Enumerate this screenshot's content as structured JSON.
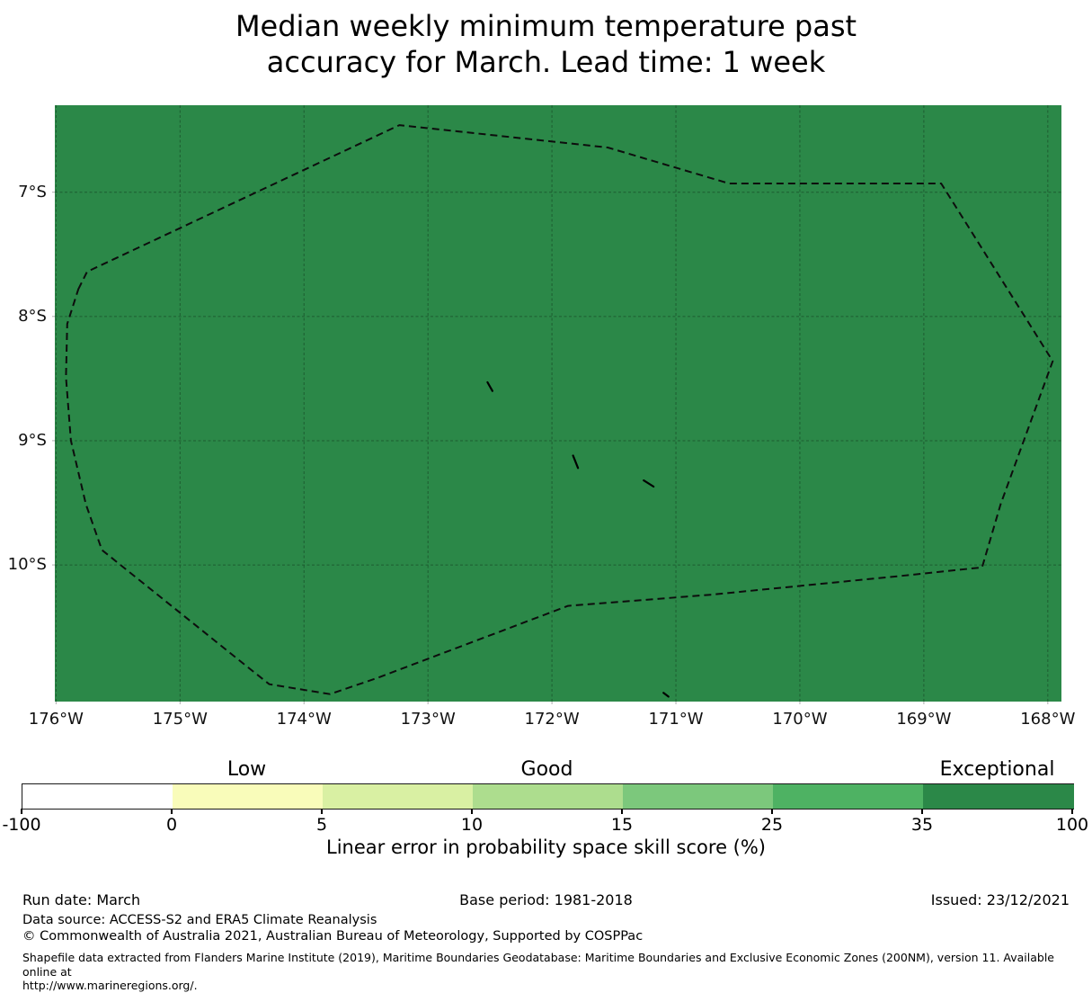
{
  "title": "Median weekly minimum temperature past\naccuracy for March. Lead time: 1 week",
  "footer": {
    "run_date": "Run date: March",
    "base_period": "Base period: 1981-2018",
    "issued": "Issued: 23/12/2021",
    "data_source": "Data source: ACCESS-S2 and ERA5 Climate Reanalysis",
    "copyright": "© Commonwealth of Australia 2021, Australian Bureau of Meteorology, Supported by COSPPac",
    "shapefile_note": "Shapefile data extracted from Flanders Marine Institute (2019), Maritime Boundaries Geodatabase: Maritime Boundaries and Exclusive Economic Zones (200NM), version 11. Available online at\nhttp://www.marineregions.org/."
  },
  "chart_data": {
    "type": "heatmap",
    "subtype": "geographic-skill-map",
    "region": "Tokelau exclusive economic zone area, south-west Pacific",
    "extent": {
      "lon_left_W": 176.01,
      "lon_right_W": 167.89,
      "lat_top_S": 6.3,
      "lat_bottom_S": 11.1
    },
    "grid_on": true,
    "grid_color": "#000000",
    "grid_opacity": 0.32,
    "map_fill": "#2b8848",
    "map_fill_meaning": "skill score in 35-100 bin (Exceptional) over entire domain",
    "x_ticks": [
      {
        "label": "176°W",
        "value": 176
      },
      {
        "label": "175°W",
        "value": 175
      },
      {
        "label": "174°W",
        "value": 174
      },
      {
        "label": "173°W",
        "value": 173
      },
      {
        "label": "172°W",
        "value": 172
      },
      {
        "label": "171°W",
        "value": 171
      },
      {
        "label": "170°W",
        "value": 170
      },
      {
        "label": "169°W",
        "value": 169
      },
      {
        "label": "168°W",
        "value": 168
      }
    ],
    "y_ticks": [
      {
        "label": "7°S",
        "value": 7
      },
      {
        "label": "8°S",
        "value": 8
      },
      {
        "label": "9°S",
        "value": 9
      },
      {
        "label": "10°S",
        "value": 10
      }
    ],
    "eez_boundary": {
      "style": "dashed",
      "color": "#0d0d0d",
      "points_lonW_latS": [
        [
          175.82,
          7.78
        ],
        [
          175.75,
          7.64
        ],
        [
          173.23,
          6.46
        ],
        [
          171.55,
          6.64
        ],
        [
          170.57,
          6.93
        ],
        [
          168.86,
          6.93
        ],
        [
          167.96,
          8.36
        ],
        [
          168.38,
          9.51
        ],
        [
          168.53,
          10.02
        ],
        [
          169.2,
          10.09
        ],
        [
          170.72,
          10.24
        ],
        [
          171.87,
          10.33
        ],
        [
          173.41,
          10.91
        ],
        [
          173.79,
          11.04
        ],
        [
          174.28,
          10.96
        ],
        [
          174.47,
          10.81
        ],
        [
          175.63,
          9.88
        ],
        [
          175.76,
          9.51
        ],
        [
          175.88,
          9.0
        ],
        [
          175.92,
          8.49
        ],
        [
          175.91,
          8.06
        ]
      ]
    },
    "islands": [
      [
        [
          172.52,
          8.53
        ],
        [
          172.48,
          8.6
        ]
      ],
      [
        [
          171.83,
          9.12
        ],
        [
          171.79,
          9.22
        ]
      ],
      [
        [
          171.26,
          9.32
        ],
        [
          171.18,
          9.37
        ]
      ],
      [
        [
          171.1,
          11.03
        ],
        [
          171.06,
          11.06
        ]
      ]
    ],
    "colorbar": {
      "orientation": "horizontal",
      "levels": [
        "-100",
        "0",
        "5",
        "10",
        "15",
        "25",
        "35",
        "100"
      ],
      "colors": [
        "#ffffff",
        "#f9fcba",
        "#d9f0a3",
        "#addd8e",
        "#7cc87c",
        "#4eb263",
        "#2b8848"
      ],
      "band_labels": [
        {
          "text": "Low",
          "bin": 1
        },
        {
          "text": "Good",
          "bin": 3
        },
        {
          "text": "Exceptional",
          "bin": 6
        }
      ],
      "xlabel": "Linear error in probability space skill score (%)"
    }
  }
}
